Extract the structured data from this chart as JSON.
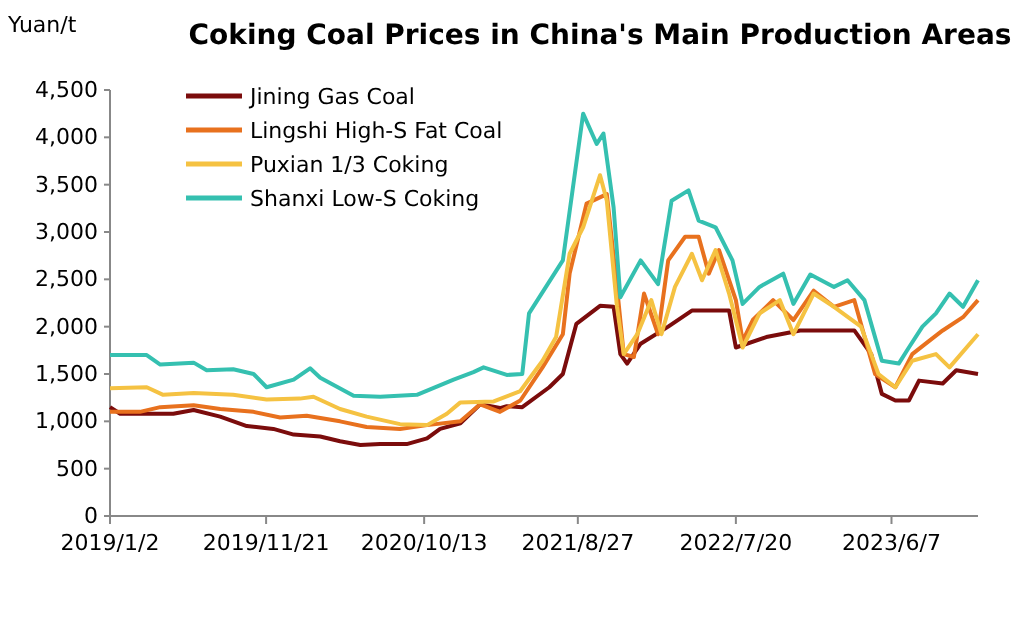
{
  "chart_data": {
    "type": "line",
    "title": "Coking Coal Prices in China's Main Production Areas",
    "ylabel": "Yuan/t",
    "xlim": [
      "2019-01-02",
      "2023-12-03"
    ],
    "xticks": [
      {
        "value": "2019-01-02",
        "label": "2019/1/2"
      },
      {
        "value": "2019-11-21",
        "label": "2019/11/21"
      },
      {
        "value": "2020-10-13",
        "label": "2020/10/13"
      },
      {
        "value": "2021-08-27",
        "label": "2021/8/27"
      },
      {
        "value": "2022-07-20",
        "label": "2022/7/20"
      },
      {
        "value": "2023-06-07",
        "label": "2023/6/7"
      }
    ],
    "ylim": [
      0,
      4500
    ],
    "yticks": [
      0,
      {
        "value": 500,
        "label": "500"
      },
      {
        "value": 1000,
        "label": "1,000"
      },
      {
        "value": 1500,
        "label": "1,500"
      },
      {
        "value": 2000,
        "label": "2,000"
      },
      {
        "value": 2500,
        "label": "2,500"
      },
      {
        "value": 3000,
        "label": "3,000"
      },
      {
        "value": 3500,
        "label": "3,500"
      },
      {
        "value": 4000,
        "label": "4,000"
      },
      {
        "value": 4500,
        "label": "4,500"
      }
    ],
    "grid": false,
    "legend": "top left",
    "marker": "none",
    "line_style": "solid",
    "series": [
      {
        "name": "Jining Gas Coal",
        "color": "#7b0c0c",
        "x": [
          "2019-01-02",
          "2019-01-23",
          "2019-05-13",
          "2019-06-24",
          "2019-08-18",
          "2019-10-12",
          "2019-12-06",
          "2020-01-17",
          "2020-03-12",
          "2020-04-22",
          "2020-06-03",
          "2020-07-14",
          "2020-09-07",
          "2020-10-19",
          "2020-11-15",
          "2020-12-27",
          "2021-02-06",
          "2021-03-19",
          "2021-04-02",
          "2021-05-04",
          "2021-06-29",
          "2021-07-27",
          "2021-08-24",
          "2021-10-12",
          "2021-11-09",
          "2021-11-23",
          "2021-12-07",
          "2022-01-04",
          "2022-03-02",
          "2022-04-20",
          "2022-06-01",
          "2022-07-06",
          "2022-07-20",
          "2022-09-21",
          "2022-11-30",
          "2023-03-22",
          "2023-04-26",
          "2023-05-18",
          "2023-06-15",
          "2023-07-13",
          "2023-08-03",
          "2023-09-21",
          "2023-10-19",
          "2023-12-03"
        ],
        "values": [
          1150,
          1080,
          1080,
          1120,
          1050,
          950,
          920,
          860,
          840,
          790,
          750,
          760,
          760,
          820,
          920,
          980,
          1180,
          1140,
          1160,
          1150,
          1360,
          1500,
          2030,
          2220,
          2210,
          1710,
          1610,
          1820,
          2000,
          2170,
          2170,
          2170,
          1780,
          1890,
          1960,
          1960,
          1710,
          1290,
          1220,
          1220,
          1430,
          1400,
          1540,
          1500
        ]
      },
      {
        "name": "Lingshi High-S Fat Coal",
        "color": "#e8711e",
        "x": [
          "2019-01-02",
          "2019-03-05",
          "2019-04-16",
          "2019-06-24",
          "2019-08-18",
          "2019-10-26",
          "2019-12-20",
          "2020-02-13",
          "2020-04-22",
          "2020-06-16",
          "2020-08-24",
          "2020-10-19",
          "2020-12-27",
          "2021-02-06",
          "2021-03-19",
          "2021-04-30",
          "2021-06-15",
          "2021-07-27",
          "2021-08-10",
          "2021-09-14",
          "2021-10-26",
          "2021-11-16",
          "2021-11-30",
          "2021-12-21",
          "2022-01-11",
          "2022-02-09",
          "2022-03-02",
          "2022-04-06",
          "2022-05-04",
          "2022-05-25",
          "2022-06-15",
          "2022-07-20",
          "2022-08-03",
          "2022-08-24",
          "2022-10-05",
          "2022-11-16",
          "2022-12-28",
          "2023-02-08",
          "2023-03-22",
          "2023-05-04",
          "2023-06-15",
          "2023-07-20",
          "2023-08-24",
          "2023-09-21",
          "2023-11-02",
          "2023-12-03"
        ],
        "values": [
          1100,
          1100,
          1150,
          1170,
          1130,
          1100,
          1040,
          1060,
          1000,
          940,
          920,
          960,
          1000,
          1180,
          1100,
          1220,
          1570,
          1920,
          2560,
          3300,
          3400,
          2420,
          1710,
          1680,
          2350,
          1920,
          2700,
          2950,
          2950,
          2560,
          2810,
          2280,
          1850,
          2070,
          2280,
          2070,
          2380,
          2210,
          2280,
          1500,
          1360,
          1710,
          1850,
          1960,
          2100,
          2280
        ]
      },
      {
        "name": "Puxian 1/3 Coking",
        "color": "#f5c242",
        "x": [
          "2019-01-02",
          "2019-03-19",
          "2019-04-22",
          "2019-06-24",
          "2019-09-14",
          "2019-11-22",
          "2020-01-30",
          "2020-02-27",
          "2020-04-22",
          "2020-06-16",
          "2020-08-24",
          "2020-10-19",
          "2020-11-29",
          "2020-12-27",
          "2021-03-06",
          "2021-04-30",
          "2021-06-15",
          "2021-07-13",
          "2021-08-10",
          "2021-09-07",
          "2021-10-12",
          "2021-10-26",
          "2021-11-16",
          "2021-11-30",
          "2021-12-28",
          "2022-01-26",
          "2022-02-16",
          "2022-03-16",
          "2022-04-20",
          "2022-05-11",
          "2022-06-08",
          "2022-07-06",
          "2022-08-03",
          "2022-09-07",
          "2022-10-19",
          "2022-11-16",
          "2022-12-28",
          "2023-02-08",
          "2023-04-05",
          "2023-05-11",
          "2023-06-15",
          "2023-07-20",
          "2023-09-07",
          "2023-10-05",
          "2023-12-03"
        ],
        "values": [
          1350,
          1360,
          1280,
          1300,
          1280,
          1230,
          1240,
          1260,
          1130,
          1050,
          970,
          960,
          1080,
          1200,
          1210,
          1320,
          1640,
          1890,
          2770,
          3050,
          3600,
          3330,
          2210,
          1710,
          1920,
          2280,
          1920,
          2420,
          2770,
          2490,
          2810,
          2350,
          1780,
          2140,
          2280,
          1920,
          2350,
          2210,
          2000,
          1500,
          1360,
          1640,
          1710,
          1570,
          1920
        ]
      },
      {
        "name": "Shanxi Low-S Coking",
        "color": "#35c0b0",
        "x": [
          "2019-01-02",
          "2019-03-19",
          "2019-04-16",
          "2019-06-24",
          "2019-07-21",
          "2019-09-14",
          "2019-10-26",
          "2019-11-22",
          "2020-01-17",
          "2020-02-20",
          "2020-03-12",
          "2020-05-20",
          "2020-07-14",
          "2020-09-28",
          "2020-12-13",
          "2021-01-23",
          "2021-02-13",
          "2021-04-02",
          "2021-05-04",
          "2021-05-18",
          "2021-07-27",
          "2021-09-07",
          "2021-10-05",
          "2021-10-19",
          "2021-11-09",
          "2021-11-23",
          "2022-01-04",
          "2022-02-09",
          "2022-03-09",
          "2022-04-13",
          "2022-05-04",
          "2022-06-08",
          "2022-07-13",
          "2022-08-03",
          "2022-09-07",
          "2022-10-26",
          "2022-11-16",
          "2022-12-21",
          "2023-02-08",
          "2023-03-08",
          "2023-04-12",
          "2023-05-18",
          "2023-06-22",
          "2023-07-13",
          "2023-08-10",
          "2023-09-07",
          "2023-10-05",
          "2023-11-02",
          "2023-12-03"
        ],
        "values": [
          1700,
          1700,
          1600,
          1620,
          1540,
          1550,
          1500,
          1360,
          1440,
          1560,
          1460,
          1270,
          1260,
          1280,
          1440,
          1520,
          1570,
          1490,
          1500,
          2140,
          2700,
          4250,
          3930,
          4040,
          3260,
          2310,
          2700,
          2450,
          3330,
          3440,
          3120,
          3050,
          2700,
          2240,
          2420,
          2560,
          2240,
          2550,
          2420,
          2490,
          2280,
          1640,
          1610,
          1780,
          2000,
          2140,
          2350,
          2210,
          2490
        ]
      }
    ]
  }
}
